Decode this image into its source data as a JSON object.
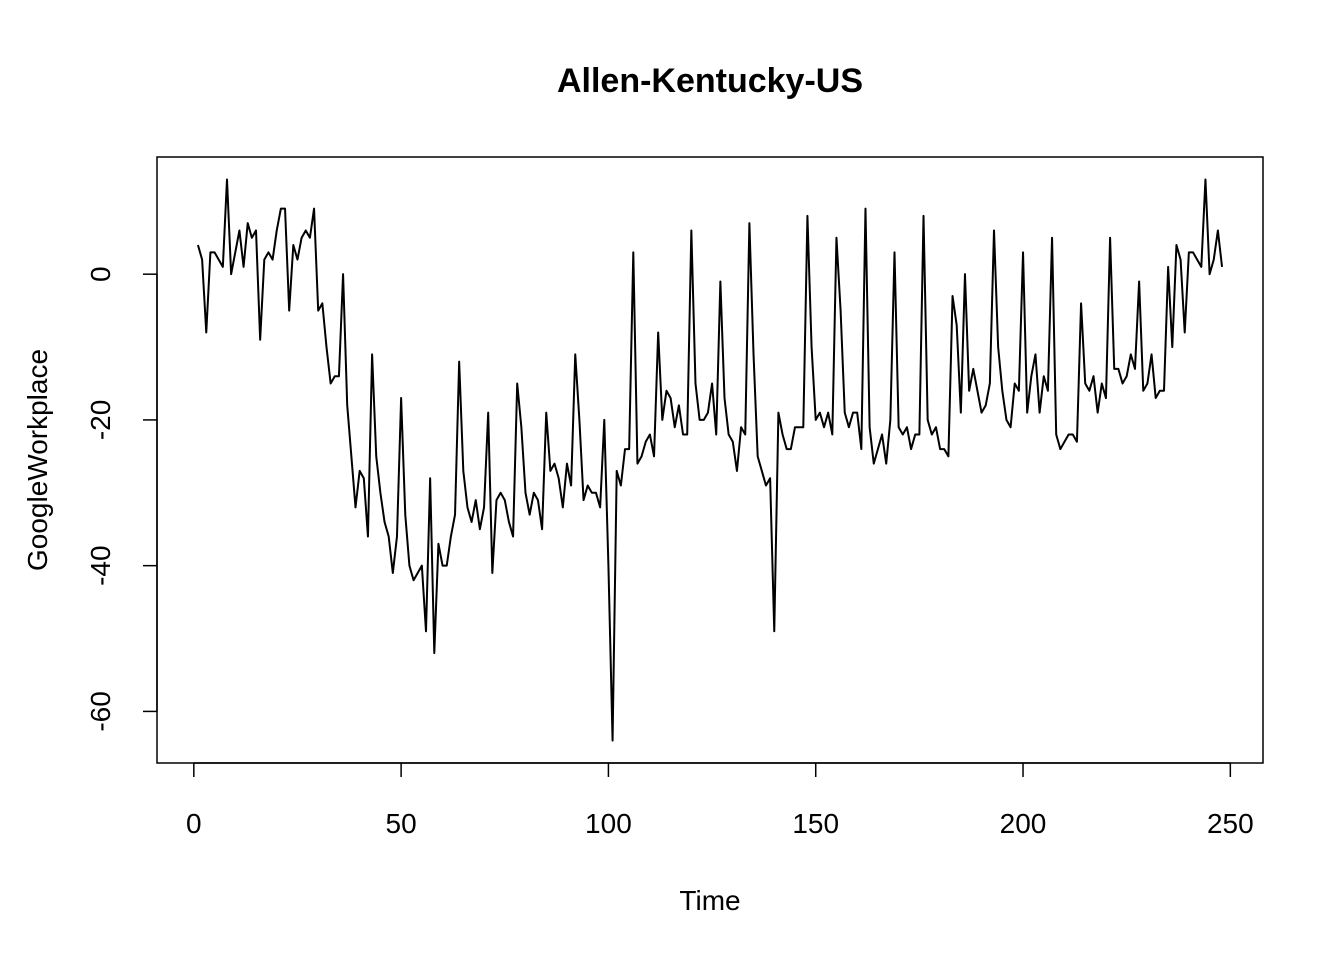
{
  "chart_data": {
    "type": "line",
    "title": "Allen-Kentucky-US",
    "x_label": "Time",
    "y_label": "GoogleWorkplace",
    "x": [
      1,
      2,
      3,
      4,
      5,
      6,
      7,
      8,
      9,
      10,
      11,
      12,
      13,
      14,
      15,
      16,
      17,
      18,
      19,
      20,
      21,
      22,
      23,
      24,
      25,
      26,
      27,
      28,
      29,
      30,
      31,
      32,
      33,
      34,
      35,
      36,
      37,
      38,
      39,
      40,
      41,
      42,
      43,
      44,
      45,
      46,
      47,
      48,
      49,
      50,
      51,
      52,
      53,
      54,
      55,
      56,
      57,
      58,
      59,
      60,
      61,
      62,
      63,
      64,
      65,
      66,
      67,
      68,
      69,
      70,
      71,
      72,
      73,
      74,
      75,
      76,
      77,
      78,
      79,
      80,
      81,
      82,
      83,
      84,
      85,
      86,
      87,
      88,
      89,
      90,
      91,
      92,
      93,
      94,
      95,
      96,
      97,
      98,
      99,
      100,
      101,
      102,
      103,
      104,
      105,
      106,
      107,
      108,
      109,
      110,
      111,
      112,
      113,
      114,
      115,
      116,
      117,
      118,
      119,
      120,
      121,
      122,
      123,
      124,
      125,
      126,
      127,
      128,
      129,
      130,
      131,
      132,
      133,
      134,
      135,
      136,
      137,
      138,
      139,
      140,
      141,
      142,
      143,
      144,
      145,
      146,
      147,
      148,
      149,
      150,
      151,
      152,
      153,
      154,
      155,
      156,
      157,
      158,
      159,
      160,
      161,
      162,
      163,
      164,
      165,
      166,
      167,
      168,
      169,
      170,
      171,
      172,
      173,
      174,
      175,
      176,
      177,
      178,
      179,
      180,
      181,
      182,
      183,
      184,
      185,
      186,
      187,
      188,
      189,
      190,
      191,
      192,
      193,
      194,
      195,
      196,
      197,
      198,
      199,
      200,
      201,
      202,
      203,
      204,
      205,
      206,
      207,
      208,
      209,
      210,
      211,
      212,
      213,
      214,
      215,
      216,
      217,
      218,
      219,
      220,
      221,
      222,
      223,
      224,
      225,
      226,
      227,
      228,
      229,
      230,
      231,
      232,
      233,
      234,
      235,
      236,
      237,
      238,
      239,
      240,
      241,
      242,
      243,
      244,
      245,
      246,
      247,
      248
    ],
    "series": [
      {
        "name": "GoogleWorkplace",
        "color": "#000000",
        "values": [
          4,
          2,
          -8,
          3,
          3,
          2,
          1,
          13,
          0,
          3,
          6,
          1,
          7,
          5,
          6,
          -9,
          2,
          3,
          2,
          6,
          9,
          9,
          -5,
          4,
          2,
          5,
          6,
          5,
          9,
          -5,
          -4,
          -10,
          -15,
          -14,
          -14,
          0,
          -18,
          -25,
          -32,
          -27,
          -28,
          -36,
          -11,
          -25,
          -30,
          -34,
          -36,
          -41,
          -36,
          -17,
          -33,
          -40,
          -42,
          -41,
          -40,
          -49,
          -28,
          -52,
          -37,
          -40,
          -40,
          -36,
          -33,
          -12,
          -27,
          -32,
          -34,
          -31,
          -35,
          -32,
          -19,
          -41,
          -31,
          -30,
          -31,
          -34,
          -36,
          -15,
          -21,
          -30,
          -33,
          -30,
          -31,
          -35,
          -19,
          -27,
          -26,
          -28,
          -32,
          -26,
          -29,
          -11,
          -20,
          -31,
          -29,
          -30,
          -30,
          -32,
          -20,
          -40,
          -64,
          -27,
          -29,
          -24,
          -24,
          3,
          -26,
          -25,
          -23,
          -22,
          -25,
          -8,
          -20,
          -16,
          -17,
          -21,
          -18,
          -22,
          -22,
          6,
          -15,
          -20,
          -20,
          -19,
          -15,
          -22,
          -1,
          -17,
          -22,
          -23,
          -27,
          -21,
          -22,
          7,
          -11,
          -25,
          -27,
          -29,
          -28,
          -49,
          -19,
          -22,
          -24,
          -24,
          -21,
          -21,
          -21,
          8,
          -10,
          -20,
          -19,
          -21,
          -19,
          -22,
          5,
          -5,
          -19,
          -21,
          -19,
          -19,
          -24,
          9,
          -21,
          -26,
          -24,
          -22,
          -26,
          -20,
          3,
          -21,
          -22,
          -21,
          -24,
          -22,
          -22,
          8,
          -20,
          -22,
          -21,
          -24,
          -24,
          -25,
          -3,
          -7,
          -19,
          0,
          -16,
          -13,
          -16,
          -19,
          -18,
          -15,
          6,
          -10,
          -16,
          -20,
          -21,
          -15,
          -16,
          3,
          -19,
          -14,
          -11,
          -19,
          -14,
          -16,
          5,
          -22,
          -24,
          -23,
          -22,
          -22,
          -23,
          -4,
          -15,
          -16,
          -14,
          -19,
          -15,
          -17,
          5,
          -13,
          -13,
          -15,
          -14,
          -11,
          -13,
          -1,
          -16,
          -15,
          -11,
          -17,
          -16,
          -16,
          1,
          -10,
          4,
          2,
          -8,
          3,
          3,
          2,
          1,
          13,
          0,
          2,
          6,
          1
        ]
      }
    ],
    "xlim": [
      -8.88,
      257.88
    ],
    "ylim": [
      -67.08,
      16.08
    ],
    "xticks": [
      0,
      50,
      100,
      150,
      200,
      250
    ],
    "yticks": [
      -60,
      -40,
      -20,
      0
    ]
  }
}
